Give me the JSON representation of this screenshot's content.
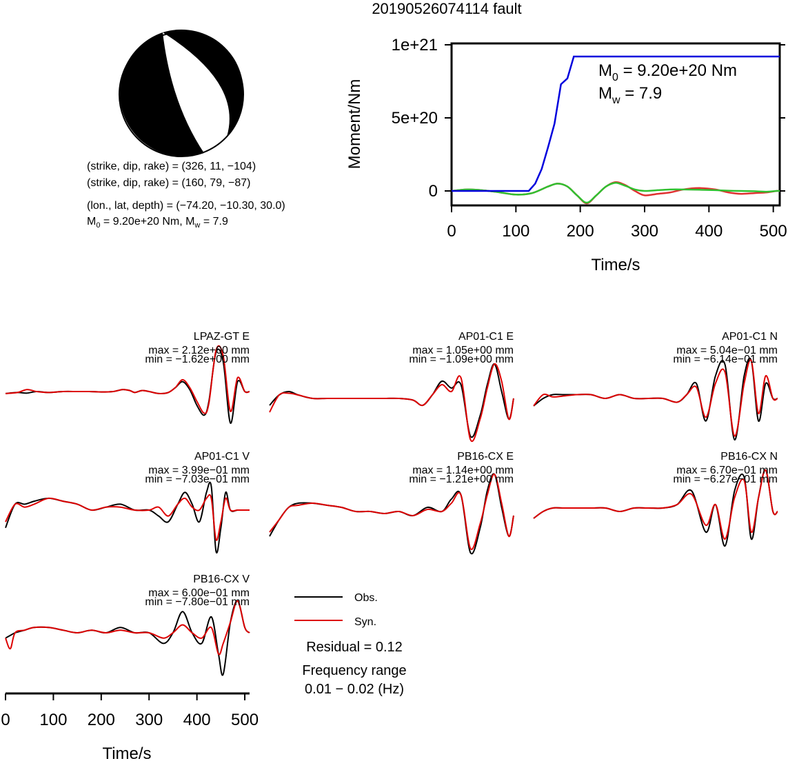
{
  "title": "20190526074114 fault",
  "focal": {
    "lines": [
      "(strike, dip, rake) = (326, 11, −104)",
      "(strike, dip, rake) = (160, 79, −87)",
      "(lon., lat, depth) = (−74.20, −10.30, 30.0)"
    ],
    "m0_label": "M",
    "m0_sub": "0",
    "m0_value": " = 9.20e+20 Nm, M",
    "mw_sub": "w",
    "mw_value": " = 7.9"
  },
  "moment_annotation": {
    "m0_sym": "M",
    "m0_sub": "0",
    "m0_val": " = 9.20e+20 Nm",
    "mw_sym": "M",
    "mw_sub": "w",
    "mw_val": " = 7.9"
  },
  "legend": {
    "obs": "Obs.",
    "syn": "Syn.",
    "residual": "Residual = 0.12",
    "freq_title": "Frequency range",
    "freq_value": "0.01 − 0.02 (Hz)"
  },
  "colors": {
    "moment": "#0000dd",
    "stf_a": "#e03030",
    "stf_b": "#30c030",
    "observed": "#000000",
    "synthetic": "#dd0000",
    "focal_fill": "#000000"
  },
  "chart_data": [
    {
      "type": "line",
      "name": "moment",
      "xlabel": "Time/s",
      "ylabel": "Moment/Nm",
      "xlim": [
        0,
        510
      ],
      "ylim": [
        -1e+20,
        1.05e+21
      ],
      "xticks": [
        "0",
        "100",
        "200",
        "300",
        "400",
        "500"
      ],
      "yticks": [
        "0",
        "5e+20",
        "1e+21"
      ],
      "series": [
        {
          "role": "cumulative",
          "x": [
            0,
            120,
            130,
            140,
            150,
            160,
            170,
            180,
            190,
            510
          ],
          "y": [
            0,
            0,
            5e+19,
            1.5e+20,
            3e+20,
            4.6e+20,
            7.3e+20,
            7.7e+20,
            9.2e+20,
            9.2e+20
          ]
        },
        {
          "role": "rate-a",
          "x": [
            0,
            25,
            50,
            75,
            100,
            125,
            150,
            165,
            180,
            195,
            210,
            225,
            240,
            255,
            270,
            285,
            300,
            320,
            340,
            360,
            385,
            410,
            430,
            450,
            470,
            490,
            505,
            510
          ],
          "y": [
            0,
            1e+19,
            4e+18,
            -1e+19,
            -2.5e+19,
            -1.5e+19,
            3e+19,
            5e+19,
            3e+19,
            -3e+19,
            -8.5e+19,
            -3e+19,
            3e+19,
            6e+19,
            4e+19,
            0,
            -3e+19,
            -2e+19,
            -1e+19,
            1e+19,
            2e+19,
            1e+19,
            -1e+19,
            -2e+19,
            -1.5e+19,
            -1e+19,
            0,
            0
          ]
        },
        {
          "role": "rate-b",
          "x": [
            0,
            25,
            50,
            75,
            100,
            125,
            150,
            165,
            180,
            195,
            210,
            225,
            240,
            255,
            270,
            285,
            300,
            320,
            340,
            360,
            385,
            410,
            430,
            450,
            470,
            490,
            505,
            510
          ],
          "y": [
            0,
            1e+19,
            4e+18,
            -1e+19,
            -2.5e+19,
            -1.5e+19,
            3e+19,
            5e+19,
            3e+19,
            -3e+19,
            -8e+19,
            -3e+19,
            3e+19,
            5.5e+19,
            3.5e+19,
            1e+19,
            0,
            5e+18,
            1e+19,
            1e+19,
            8e+18,
            5e+18,
            2e+18,
            0,
            -2e+18,
            -5e+18,
            0,
            0
          ]
        }
      ]
    },
    {
      "type": "line",
      "name": "waveforms",
      "xlabel": "Time/s",
      "xlim": [
        0,
        510
      ],
      "xticks": [
        "0",
        "100",
        "200",
        "300",
        "400",
        "500"
      ],
      "panels": [
        {
          "station": "LPAZ-GT E",
          "max": "max = 2.12e+00 mm",
          "min": "min = −1.62e+00 mm",
          "x": [
            0,
            25,
            45,
            65,
            90,
            120,
            150,
            175,
            200,
            225,
            245,
            260,
            270,
            285,
            300,
            320,
            340,
            355,
            370,
            385,
            400,
            415,
            425,
            440,
            455,
            470,
            485,
            500,
            510
          ],
          "obs": [
            -0.1,
            -0.05,
            -0.08,
            0,
            -0.05,
            0,
            0,
            0,
            -0.02,
            0,
            0.1,
            0.05,
            -0.05,
            0.05,
            0,
            -0.1,
            -0.05,
            0.2,
            0.5,
            0.1,
            -0.7,
            -1.2,
            -0.5,
            2.0,
            1.5,
            -1.6,
            0.5,
            0,
            0
          ],
          "syn": [
            -0.1,
            -0.05,
            0.1,
            0,
            -0.05,
            0,
            0,
            0,
            -0.02,
            0,
            0.1,
            0.05,
            -0.05,
            0.05,
            0,
            -0.1,
            -0.05,
            0.2,
            0.6,
            0.2,
            -0.5,
            -1.1,
            -0.6,
            2.1,
            1.8,
            -1.0,
            0.7,
            0,
            0
          ]
        },
        {
          "station": "AP01-C1 E",
          "max": "max = 1.05e+00 mm",
          "min": "min = −1.09e+00 mm",
          "x": [
            0,
            20,
            40,
            60,
            90,
            120,
            150,
            180,
            210,
            240,
            270,
            300,
            320,
            340,
            360,
            380,
            400,
            420,
            440,
            455,
            470,
            485,
            500,
            510
          ],
          "obs": [
            -0.2,
            0.1,
            0.2,
            0.1,
            0,
            0,
            0,
            0,
            0,
            0,
            0,
            -0.05,
            -0.2,
            0.1,
            0.5,
            0.3,
            0.4,
            -1.1,
            -0.5,
            0.4,
            1.0,
            0.2,
            -0.6,
            0
          ],
          "syn": [
            -0.4,
            0.1,
            0.15,
            0.1,
            0,
            0,
            0,
            0,
            0,
            0,
            0,
            -0.05,
            -0.2,
            0.1,
            0.4,
            0.2,
            0.6,
            -1.2,
            -0.6,
            0.3,
            1.0,
            0.5,
            -0.6,
            0
          ]
        },
        {
          "station": "AP01-C1 N",
          "max": "max = 5.04e−01 mm",
          "min": "min = −6.14e−01 mm",
          "x": [
            0,
            20,
            40,
            60,
            90,
            120,
            150,
            180,
            210,
            240,
            270,
            300,
            320,
            340,
            360,
            380,
            400,
            420,
            440,
            455,
            470,
            485,
            500,
            510
          ],
          "obs": [
            -0.1,
            0,
            0.05,
            0.05,
            0.05,
            0.05,
            0,
            0.05,
            0,
            0,
            0,
            -0.05,
            0.05,
            0.2,
            -0.3,
            0.3,
            0.45,
            -0.55,
            0.3,
            0.5,
            -0.3,
            0.2,
            0,
            0
          ],
          "syn": [
            -0.1,
            0.05,
            0.02,
            0.03,
            0.05,
            0.05,
            0,
            0.05,
            0,
            0,
            0,
            -0.05,
            0.05,
            0.15,
            -0.25,
            0.2,
            0.35,
            -0.5,
            0.2,
            0.5,
            -0.2,
            0.3,
            0,
            0
          ]
        },
        {
          "station": "AP01-C1 V",
          "max": "max = 3.99e−01 mm",
          "min": "min = −7.03e−01 mm",
          "x": [
            0,
            20,
            40,
            60,
            90,
            120,
            150,
            180,
            210,
            240,
            270,
            300,
            320,
            340,
            360,
            375,
            390,
            405,
            420,
            430,
            440,
            450,
            460,
            470,
            485,
            500,
            510
          ],
          "obs": [
            -0.3,
            0.1,
            0.1,
            0.15,
            0.2,
            0.15,
            0.1,
            0,
            0.05,
            0.1,
            0,
            0,
            -0.1,
            -0.2,
            0.1,
            0.3,
            0.1,
            -0.2,
            0.3,
            0.4,
            -0.7,
            -0.3,
            0.3,
            0,
            0,
            0,
            0
          ],
          "syn": [
            -0.2,
            0.1,
            0.05,
            0.1,
            0.2,
            0.15,
            0.1,
            0,
            0.05,
            0.05,
            0,
            0,
            0.05,
            -0.1,
            0.1,
            0.2,
            0.05,
            0,
            0.2,
            0.2,
            -0.5,
            -0.2,
            0.2,
            0,
            0,
            0,
            0
          ]
        },
        {
          "station": "PB16-CX E",
          "max": "max = 1.14e+00 mm",
          "min": "min = −1.21e+00 mm",
          "x": [
            0,
            20,
            40,
            60,
            90,
            120,
            150,
            180,
            210,
            240,
            270,
            300,
            330,
            360,
            380,
            400,
            420,
            440,
            455,
            470,
            485,
            500,
            510
          ],
          "obs": [
            -0.5,
            -0.1,
            0.2,
            0.3,
            0.3,
            0.25,
            0.2,
            0.1,
            0.1,
            0.05,
            0.1,
            0,
            0.2,
            0.1,
            0.4,
            0.5,
            -0.9,
            -0.3,
            0.6,
            1.0,
            0.2,
            -0.5,
            0
          ],
          "syn": [
            -0.4,
            -0.1,
            0.2,
            0.25,
            0.3,
            0.25,
            0.2,
            0.1,
            0.1,
            0.05,
            0.1,
            0,
            0.15,
            0.1,
            0.3,
            0.5,
            -0.8,
            -0.2,
            0.5,
            1.0,
            0.3,
            -0.5,
            0
          ]
        },
        {
          "station": "PB16-CX N",
          "max": "max = 6.70e−01 mm",
          "min": "min = −6.27e−01 mm",
          "x": [
            0,
            20,
            40,
            60,
            90,
            120,
            150,
            180,
            210,
            240,
            270,
            300,
            330,
            360,
            380,
            400,
            420,
            440,
            455,
            470,
            485,
            500,
            510
          ],
          "obs": [
            -0.1,
            0,
            0.05,
            0.05,
            0.05,
            0.05,
            0.05,
            0,
            0.05,
            0.05,
            0.05,
            0.1,
            0.3,
            -0.3,
            0.1,
            -0.5,
            0.3,
            0.5,
            -0.4,
            0.2,
            0.6,
            0,
            0
          ],
          "syn": [
            -0.1,
            0,
            0.05,
            0.05,
            0.05,
            0.05,
            0.05,
            0,
            0.05,
            0.05,
            0.05,
            0.1,
            0.25,
            -0.2,
            0.1,
            -0.4,
            0.2,
            0.45,
            -0.3,
            0.2,
            0.6,
            0,
            0
          ]
        },
        {
          "station": "PB16-CX V",
          "max": "max = 6.00e−01 mm",
          "min": "min = −7.80e−01 mm",
          "x": [
            0,
            10,
            20,
            40,
            60,
            90,
            120,
            150,
            180,
            210,
            240,
            270,
            300,
            330,
            350,
            370,
            390,
            410,
            430,
            445,
            455,
            470,
            485,
            500,
            510
          ],
          "obs": [
            -0.1,
            -0.05,
            0,
            0.05,
            0.1,
            0.1,
            0.05,
            0,
            0.05,
            0,
            0.1,
            0,
            0,
            -0.2,
            0,
            0.4,
            0,
            -0.2,
            0.3,
            -0.4,
            -0.78,
            0.2,
            0.6,
            0.1,
            0
          ],
          "syn": [
            -0.1,
            -0.3,
            0,
            0.05,
            0.1,
            0.1,
            0.05,
            0,
            0.05,
            0,
            0.05,
            0,
            0,
            -0.1,
            0,
            0.15,
            0,
            -0.1,
            0.1,
            -0.4,
            -0.2,
            0.2,
            0.6,
            0.1,
            0
          ]
        }
      ]
    }
  ]
}
